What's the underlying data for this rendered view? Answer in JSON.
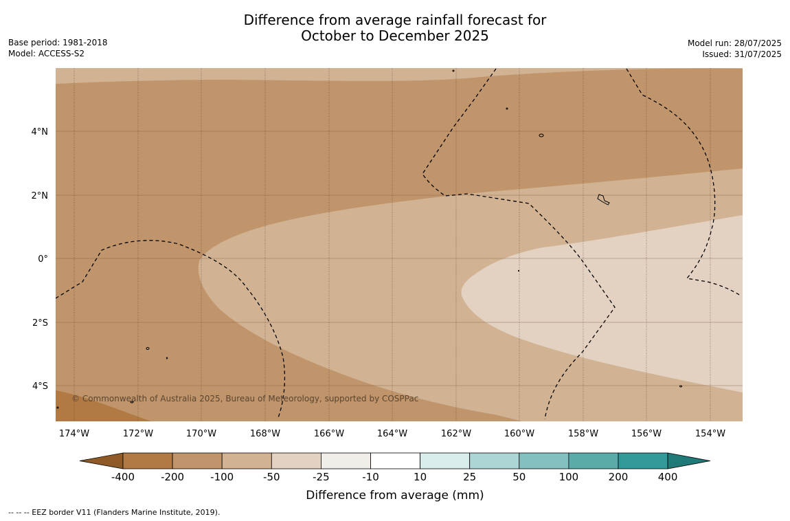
{
  "title": {
    "line1": "Difference from average rainfall forecast for",
    "line2": "October to December 2025"
  },
  "meta_left": {
    "base_period": "Base period: 1981-2018",
    "model": "Model: ACCESS-S2"
  },
  "meta_right": {
    "model_run": "Model run: 28/07/2025",
    "issued": "Issued: 31/07/2025"
  },
  "map": {
    "lon_labels": [
      "174°W",
      "172°W",
      "170°W",
      "168°W",
      "166°W",
      "164°W",
      "162°W",
      "160°W",
      "158°W",
      "156°W",
      "154°W"
    ],
    "lat_labels": [
      "4°N",
      "2°N",
      "0°",
      "2°S",
      "4°S"
    ],
    "copyright": "© Commonwealth of Australia 2025, Bureau of Meteorology, supported by COSPPac",
    "colors": {
      "band_minus_200": "#b17a44",
      "band_minus_100": "#c0956b",
      "band_minus_50": "#d1b394",
      "band_minus_25": "#e3d2c2"
    }
  },
  "colorbar": {
    "tick_labels": [
      "-400",
      "-200",
      "-100",
      "-50",
      "-25",
      "-10",
      "10",
      "25",
      "50",
      "100",
      "200",
      "400"
    ],
    "colors": [
      "#905a28",
      "#b17a44",
      "#c0956b",
      "#d1b394",
      "#e3d2c2",
      "#f1ede8",
      "#ffffff",
      "#d8ecec",
      "#aed5d6",
      "#84c0c0",
      "#5babab",
      "#339a99",
      "#1f7a78"
    ],
    "label": "Difference from average (mm)"
  },
  "footnote": "--  --  -- EEZ border V11 (Flanders Marine Institute, 2019)."
}
